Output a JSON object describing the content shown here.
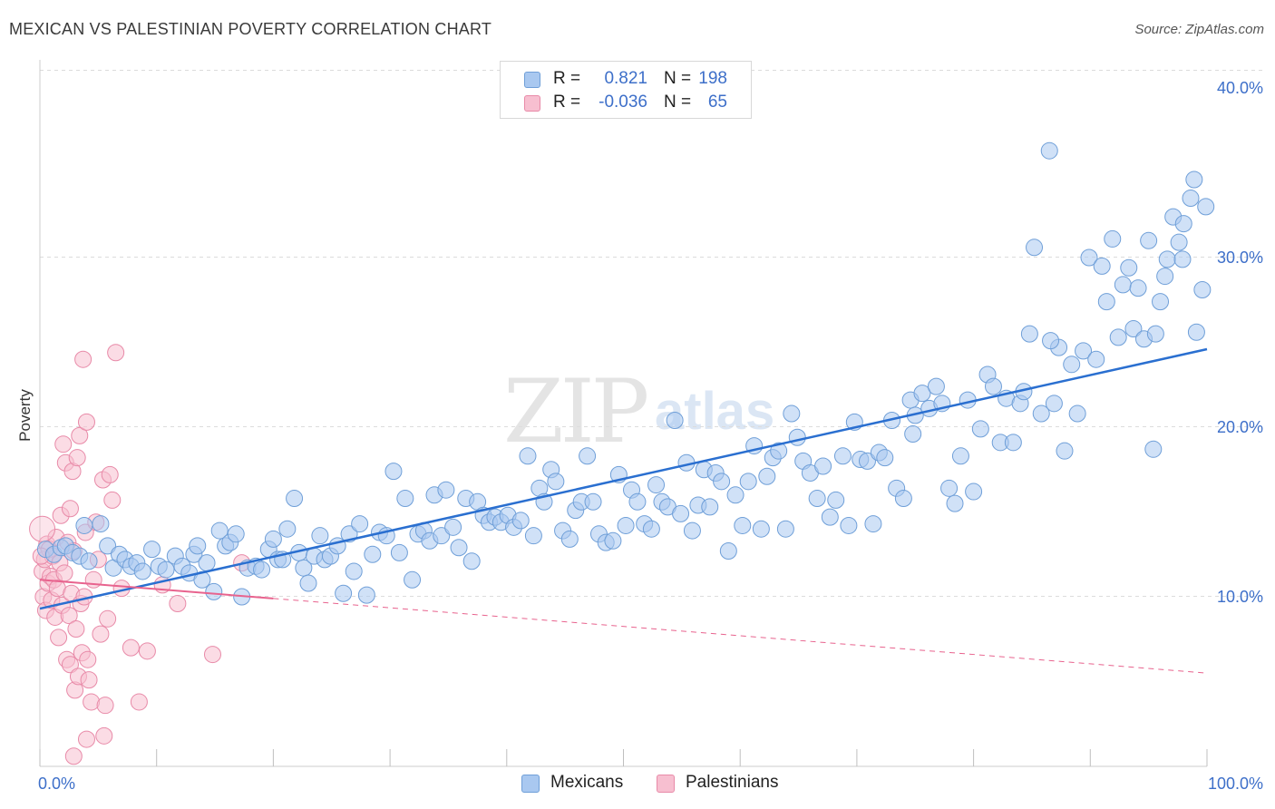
{
  "title": "MEXICAN VS PALESTINIAN POVERTY CORRELATION CHART",
  "source": "Source: ZipAtlas.com",
  "watermark": {
    "main": "ZIP",
    "sub": "atlas"
  },
  "legend": {
    "rows": [
      {
        "r_label": "R =",
        "r_value": "0.821",
        "n_label": "N =",
        "n_value": "198",
        "color": "#a9c8f0",
        "border": "#6f9fd8"
      },
      {
        "r_label": "R =",
        "r_value": "-0.036",
        "n_label": "N =",
        "n_value": "65",
        "color": "#f7bfd0",
        "border": "#e88aa8"
      }
    ]
  },
  "bottom_legend": [
    {
      "label": "Mexicans",
      "color": "#a9c8f0",
      "border": "#6f9fd8"
    },
    {
      "label": "Palestinians",
      "color": "#f7bfd0",
      "border": "#e88aa8"
    }
  ],
  "chart_data": {
    "type": "scatter",
    "title": "MEXICAN VS PALESTINIAN POVERTY CORRELATION CHART",
    "xlabel": "",
    "ylabel": "Poverty",
    "xlim": [
      0,
      100
    ],
    "ylim": [
      0,
      40
    ],
    "x_tick_labels": [
      "0.0%",
      "100.0%"
    ],
    "y_ticks": [
      10,
      20,
      30,
      40
    ],
    "y_tick_labels": [
      "10.0%",
      "20.0%",
      "30.0%",
      "40.0%"
    ],
    "grid": true,
    "legend_position": "top-center",
    "series": [
      {
        "name": "Mexicans",
        "color": "#6f9fd8",
        "fill": "#a9c8f0",
        "trend": {
          "x": [
            0,
            100
          ],
          "y": [
            9.3,
            24.6
          ],
          "dashed_extension": false,
          "color": "#2a6fd0"
        },
        "points": [
          [
            0.5,
            12.8
          ],
          [
            1.2,
            12.5
          ],
          [
            1.8,
            12.9
          ],
          [
            2.2,
            13.0
          ],
          [
            2.8,
            12.6
          ],
          [
            3.4,
            12.4
          ],
          [
            3.8,
            14.2
          ],
          [
            4.2,
            12.1
          ],
          [
            5.2,
            14.3
          ],
          [
            5.8,
            13.0
          ],
          [
            6.3,
            11.7
          ],
          [
            6.8,
            12.5
          ],
          [
            7.3,
            12.2
          ],
          [
            7.8,
            11.8
          ],
          [
            8.3,
            12.0
          ],
          [
            8.8,
            11.5
          ],
          [
            9.6,
            12.8
          ],
          [
            10.2,
            11.8
          ],
          [
            10.8,
            11.6
          ],
          [
            11.6,
            12.4
          ],
          [
            12.2,
            11.8
          ],
          [
            12.8,
            11.4
          ],
          [
            13.2,
            12.5
          ],
          [
            13.5,
            13.0
          ],
          [
            13.9,
            11.0
          ],
          [
            14.3,
            12.0
          ],
          [
            14.9,
            10.3
          ],
          [
            15.4,
            13.9
          ],
          [
            15.9,
            13.0
          ],
          [
            16.3,
            13.2
          ],
          [
            16.8,
            13.7
          ],
          [
            17.3,
            10.0
          ],
          [
            17.8,
            11.7
          ],
          [
            18.5,
            11.8
          ],
          [
            19.0,
            11.6
          ],
          [
            19.6,
            12.8
          ],
          [
            20.0,
            13.4
          ],
          [
            20.4,
            12.2
          ],
          [
            20.8,
            12.2
          ],
          [
            21.2,
            14.0
          ],
          [
            21.8,
            15.8
          ],
          [
            22.2,
            12.6
          ],
          [
            22.6,
            11.7
          ],
          [
            23.0,
            10.8
          ],
          [
            23.5,
            12.4
          ],
          [
            24.0,
            13.6
          ],
          [
            24.4,
            12.2
          ],
          [
            24.9,
            12.4
          ],
          [
            25.5,
            13.0
          ],
          [
            26.0,
            10.2
          ],
          [
            26.5,
            13.7
          ],
          [
            26.9,
            11.5
          ],
          [
            27.4,
            14.3
          ],
          [
            28.0,
            10.1
          ],
          [
            28.5,
            12.5
          ],
          [
            29.1,
            13.8
          ],
          [
            29.7,
            13.6
          ],
          [
            30.3,
            17.4
          ],
          [
            30.8,
            12.6
          ],
          [
            31.3,
            15.8
          ],
          [
            31.9,
            11.0
          ],
          [
            32.4,
            13.7
          ],
          [
            32.9,
            13.9
          ],
          [
            33.4,
            13.3
          ],
          [
            33.8,
            16.0
          ],
          [
            34.4,
            13.6
          ],
          [
            34.8,
            16.3
          ],
          [
            35.4,
            14.1
          ],
          [
            35.9,
            12.9
          ],
          [
            36.5,
            15.8
          ],
          [
            37.0,
            12.1
          ],
          [
            37.5,
            15.6
          ],
          [
            38.0,
            14.8
          ],
          [
            38.5,
            14.4
          ],
          [
            39.0,
            14.7
          ],
          [
            39.5,
            14.4
          ],
          [
            40.1,
            14.8
          ],
          [
            40.6,
            14.1
          ],
          [
            41.2,
            14.5
          ],
          [
            41.8,
            18.3
          ],
          [
            42.3,
            13.6
          ],
          [
            42.8,
            16.4
          ],
          [
            43.2,
            15.6
          ],
          [
            43.8,
            17.5
          ],
          [
            44.2,
            16.8
          ],
          [
            44.8,
            13.9
          ],
          [
            45.4,
            13.4
          ],
          [
            45.9,
            15.1
          ],
          [
            46.4,
            15.6
          ],
          [
            46.9,
            18.3
          ],
          [
            47.4,
            15.6
          ],
          [
            47.9,
            13.7
          ],
          [
            48.5,
            13.2
          ],
          [
            49.1,
            13.3
          ],
          [
            49.6,
            17.2
          ],
          [
            50.2,
            14.2
          ],
          [
            50.7,
            16.3
          ],
          [
            51.2,
            15.6
          ],
          [
            51.8,
            14.3
          ],
          [
            52.4,
            14.0
          ],
          [
            52.8,
            16.6
          ],
          [
            53.3,
            15.6
          ],
          [
            53.8,
            15.3
          ],
          [
            54.4,
            20.4
          ],
          [
            54.9,
            14.9
          ],
          [
            55.4,
            17.9
          ],
          [
            55.9,
            13.9
          ],
          [
            56.4,
            15.4
          ],
          [
            56.9,
            17.5
          ],
          [
            57.4,
            15.3
          ],
          [
            57.9,
            17.3
          ],
          [
            58.4,
            16.8
          ],
          [
            59.0,
            12.7
          ],
          [
            59.6,
            16.0
          ],
          [
            60.2,
            14.2
          ],
          [
            60.7,
            16.8
          ],
          [
            61.2,
            18.9
          ],
          [
            61.8,
            14.0
          ],
          [
            62.3,
            17.1
          ],
          [
            62.8,
            18.2
          ],
          [
            63.3,
            18.6
          ],
          [
            63.9,
            14.0
          ],
          [
            64.4,
            20.8
          ],
          [
            64.9,
            19.4
          ],
          [
            65.4,
            18.0
          ],
          [
            66.0,
            17.3
          ],
          [
            66.6,
            15.8
          ],
          [
            67.1,
            17.7
          ],
          [
            67.7,
            14.7
          ],
          [
            68.2,
            15.7
          ],
          [
            68.8,
            18.3
          ],
          [
            69.3,
            14.2
          ],
          [
            69.8,
            20.3
          ],
          [
            70.3,
            18.1
          ],
          [
            70.9,
            18.0
          ],
          [
            71.4,
            14.3
          ],
          [
            71.9,
            18.5
          ],
          [
            72.4,
            18.2
          ],
          [
            73.0,
            20.4
          ],
          [
            73.4,
            16.4
          ],
          [
            74.0,
            15.8
          ],
          [
            74.6,
            21.6
          ],
          [
            75.0,
            20.7
          ],
          [
            75.6,
            22.0
          ],
          [
            76.2,
            21.1
          ],
          [
            76.8,
            22.4
          ],
          [
            77.3,
            21.4
          ],
          [
            77.9,
            16.4
          ],
          [
            78.4,
            15.5
          ],
          [
            78.9,
            18.3
          ],
          [
            79.5,
            21.6
          ],
          [
            80.0,
            16.2
          ],
          [
            80.6,
            19.9
          ],
          [
            81.2,
            23.1
          ],
          [
            81.7,
            22.4
          ],
          [
            82.3,
            19.1
          ],
          [
            82.8,
            21.7
          ],
          [
            83.4,
            19.1
          ],
          [
            84.0,
            21.4
          ],
          [
            84.3,
            22.1
          ],
          [
            84.8,
            25.5
          ],
          [
            85.2,
            30.6
          ],
          [
            85.8,
            20.8
          ],
          [
            86.5,
            36.3
          ],
          [
            86.9,
            21.4
          ],
          [
            87.3,
            24.7
          ],
          [
            87.8,
            18.6
          ],
          [
            88.4,
            23.7
          ],
          [
            88.9,
            20.8
          ],
          [
            89.4,
            24.5
          ],
          [
            89.9,
            30.0
          ],
          [
            90.5,
            24.0
          ],
          [
            91.0,
            29.5
          ],
          [
            91.4,
            27.4
          ],
          [
            91.9,
            31.1
          ],
          [
            92.4,
            25.3
          ],
          [
            92.8,
            28.4
          ],
          [
            93.3,
            29.4
          ],
          [
            93.7,
            25.8
          ],
          [
            94.1,
            28.2
          ],
          [
            94.6,
            25.2
          ],
          [
            95.0,
            31.0
          ],
          [
            95.4,
            18.7
          ],
          [
            96.0,
            27.4
          ],
          [
            96.6,
            29.9
          ],
          [
            97.1,
            32.4
          ],
          [
            97.6,
            30.9
          ],
          [
            98.0,
            32.0
          ],
          [
            98.6,
            33.5
          ],
          [
            99.1,
            25.6
          ],
          [
            99.6,
            28.1
          ],
          [
            97.9,
            29.9
          ],
          [
            95.6,
            25.5
          ],
          [
            96.4,
            28.9
          ],
          [
            98.9,
            34.6
          ],
          [
            99.9,
            33.0
          ],
          [
            86.6,
            25.1
          ],
          [
            74.8,
            19.6
          ]
        ]
      },
      {
        "name": "Palestinians",
        "color": "#e88aa8",
        "fill": "#f7bfd0",
        "trend": {
          "x": [
            0,
            100
          ],
          "y": [
            11.0,
            5.5
          ],
          "solid_until_x": 20,
          "color": "#e8638e"
        },
        "points": [
          [
            0.2,
            11.5
          ],
          [
            0.3,
            10.0
          ],
          [
            0.4,
            12.2
          ],
          [
            0.5,
            9.2
          ],
          [
            0.6,
            13.1
          ],
          [
            0.7,
            10.8
          ],
          [
            0.8,
            12.8
          ],
          [
            0.9,
            11.2
          ],
          [
            1.0,
            9.8
          ],
          [
            1.1,
            12.4
          ],
          [
            1.2,
            11.0
          ],
          [
            1.3,
            8.8
          ],
          [
            1.4,
            13.5
          ],
          [
            1.5,
            10.5
          ],
          [
            1.6,
            7.6
          ],
          [
            1.7,
            12.0
          ],
          [
            1.8,
            14.8
          ],
          [
            1.9,
            9.5
          ],
          [
            2.0,
            19.0
          ],
          [
            2.1,
            11.4
          ],
          [
            2.2,
            17.9
          ],
          [
            2.3,
            6.3
          ],
          [
            2.4,
            13.2
          ],
          [
            2.5,
            8.9
          ],
          [
            2.6,
            6.0
          ],
          [
            2.7,
            10.2
          ],
          [
            2.8,
            17.4
          ],
          [
            2.9,
            12.7
          ],
          [
            3.0,
            4.5
          ],
          [
            3.1,
            8.1
          ],
          [
            3.2,
            18.2
          ],
          [
            3.3,
            5.3
          ],
          [
            3.4,
            19.5
          ],
          [
            3.5,
            9.6
          ],
          [
            3.6,
            6.7
          ],
          [
            3.7,
            24.0
          ],
          [
            3.8,
            10.0
          ],
          [
            3.9,
            13.8
          ],
          [
            4.0,
            20.3
          ],
          [
            4.1,
            6.3
          ],
          [
            4.2,
            5.1
          ],
          [
            4.4,
            3.8
          ],
          [
            4.6,
            11.0
          ],
          [
            4.8,
            14.4
          ],
          [
            5.0,
            12.2
          ],
          [
            5.2,
            7.8
          ],
          [
            5.4,
            16.9
          ],
          [
            5.6,
            3.6
          ],
          [
            5.8,
            8.7
          ],
          [
            6.0,
            17.2
          ],
          [
            6.2,
            15.7
          ],
          [
            6.5,
            24.4
          ],
          [
            7.0,
            10.5
          ],
          [
            7.8,
            7.0
          ],
          [
            8.5,
            3.8
          ],
          [
            9.2,
            6.8
          ],
          [
            10.5,
            10.7
          ],
          [
            11.8,
            9.6
          ],
          [
            14.8,
            6.6
          ],
          [
            17.3,
            12.0
          ],
          [
            5.5,
            1.8
          ],
          [
            4.0,
            1.6
          ],
          [
            2.9,
            0.6
          ],
          [
            2.6,
            15.2
          ],
          [
            0.1,
            12.4
          ]
        ]
      }
    ]
  }
}
